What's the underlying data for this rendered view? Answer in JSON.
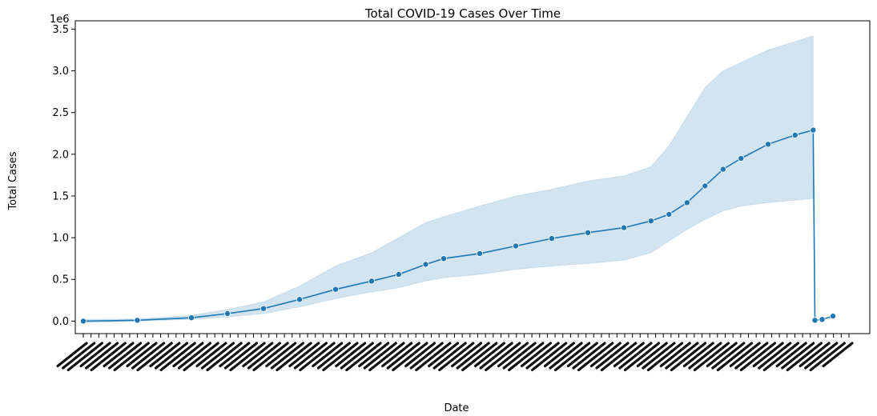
{
  "chart_data": {
    "type": "line",
    "title": "Total COVID-19 Cases Over Time",
    "xlabel": "Date",
    "ylabel": "Total Cases",
    "y_offset_text": "1e6",
    "ylim": [
      -150000,
      3600000
    ],
    "y_ticks": [
      {
        "value": 0,
        "label": "0.0"
      },
      {
        "value": 500000,
        "label": "0.5"
      },
      {
        "value": 1000000,
        "label": "1.0"
      },
      {
        "value": 1500000,
        "label": "1.5"
      },
      {
        "value": 2000000,
        "label": "2.0"
      },
      {
        "value": 2500000,
        "label": "2.5"
      },
      {
        "value": 3000000,
        "label": "3.0"
      },
      {
        "value": 3500000,
        "label": "3.5"
      }
    ],
    "x_tick_labels_legible": false,
    "grid": false,
    "colors": {
      "line": "#1f77b4",
      "band": "#1f77b4",
      "marker_edge": "#ffffff"
    },
    "markers": "o",
    "confidence_band": true,
    "series": [
      {
        "mean": [
          [
            0,
            0
          ],
          [
            30,
            10000
          ],
          [
            60,
            40000
          ],
          [
            80,
            90000
          ],
          [
            100,
            150000
          ],
          [
            120,
            260000
          ],
          [
            140,
            380000
          ],
          [
            160,
            480000
          ],
          [
            175,
            560000
          ],
          [
            190,
            680000
          ],
          [
            200,
            750000
          ],
          [
            220,
            810000
          ],
          [
            240,
            900000
          ],
          [
            260,
            990000
          ],
          [
            280,
            1060000
          ],
          [
            300,
            1120000
          ],
          [
            315,
            1200000
          ],
          [
            325,
            1280000
          ],
          [
            335,
            1420000
          ],
          [
            345,
            1620000
          ],
          [
            355,
            1820000
          ],
          [
            365,
            1950000
          ],
          [
            380,
            2120000
          ],
          [
            395,
            2230000
          ],
          [
            405,
            2290000
          ],
          [
            406,
            10000
          ],
          [
            410,
            20000
          ],
          [
            416,
            60000
          ]
        ],
        "lower": [
          [
            0,
            -20000
          ],
          [
            30,
            0
          ],
          [
            60,
            20000
          ],
          [
            80,
            50000
          ],
          [
            100,
            90000
          ],
          [
            120,
            170000
          ],
          [
            140,
            270000
          ],
          [
            160,
            350000
          ],
          [
            175,
            400000
          ],
          [
            190,
            480000
          ],
          [
            200,
            520000
          ],
          [
            220,
            560000
          ],
          [
            240,
            620000
          ],
          [
            260,
            660000
          ],
          [
            280,
            690000
          ],
          [
            300,
            730000
          ],
          [
            315,
            820000
          ],
          [
            325,
            960000
          ],
          [
            335,
            1100000
          ],
          [
            345,
            1220000
          ],
          [
            355,
            1320000
          ],
          [
            365,
            1380000
          ],
          [
            380,
            1420000
          ],
          [
            395,
            1450000
          ],
          [
            405,
            1470000
          ]
        ],
        "upper": [
          [
            0,
            20000
          ],
          [
            30,
            25000
          ],
          [
            60,
            70000
          ],
          [
            80,
            140000
          ],
          [
            100,
            230000
          ],
          [
            120,
            420000
          ],
          [
            140,
            660000
          ],
          [
            160,
            820000
          ],
          [
            175,
            1000000
          ],
          [
            190,
            1180000
          ],
          [
            200,
            1250000
          ],
          [
            220,
            1380000
          ],
          [
            240,
            1500000
          ],
          [
            260,
            1580000
          ],
          [
            280,
            1680000
          ],
          [
            300,
            1740000
          ],
          [
            315,
            1850000
          ],
          [
            325,
            2100000
          ],
          [
            335,
            2450000
          ],
          [
            345,
            2800000
          ],
          [
            355,
            3000000
          ],
          [
            365,
            3100000
          ],
          [
            380,
            3250000
          ],
          [
            395,
            3350000
          ],
          [
            405,
            3420000
          ]
        ]
      }
    ]
  }
}
